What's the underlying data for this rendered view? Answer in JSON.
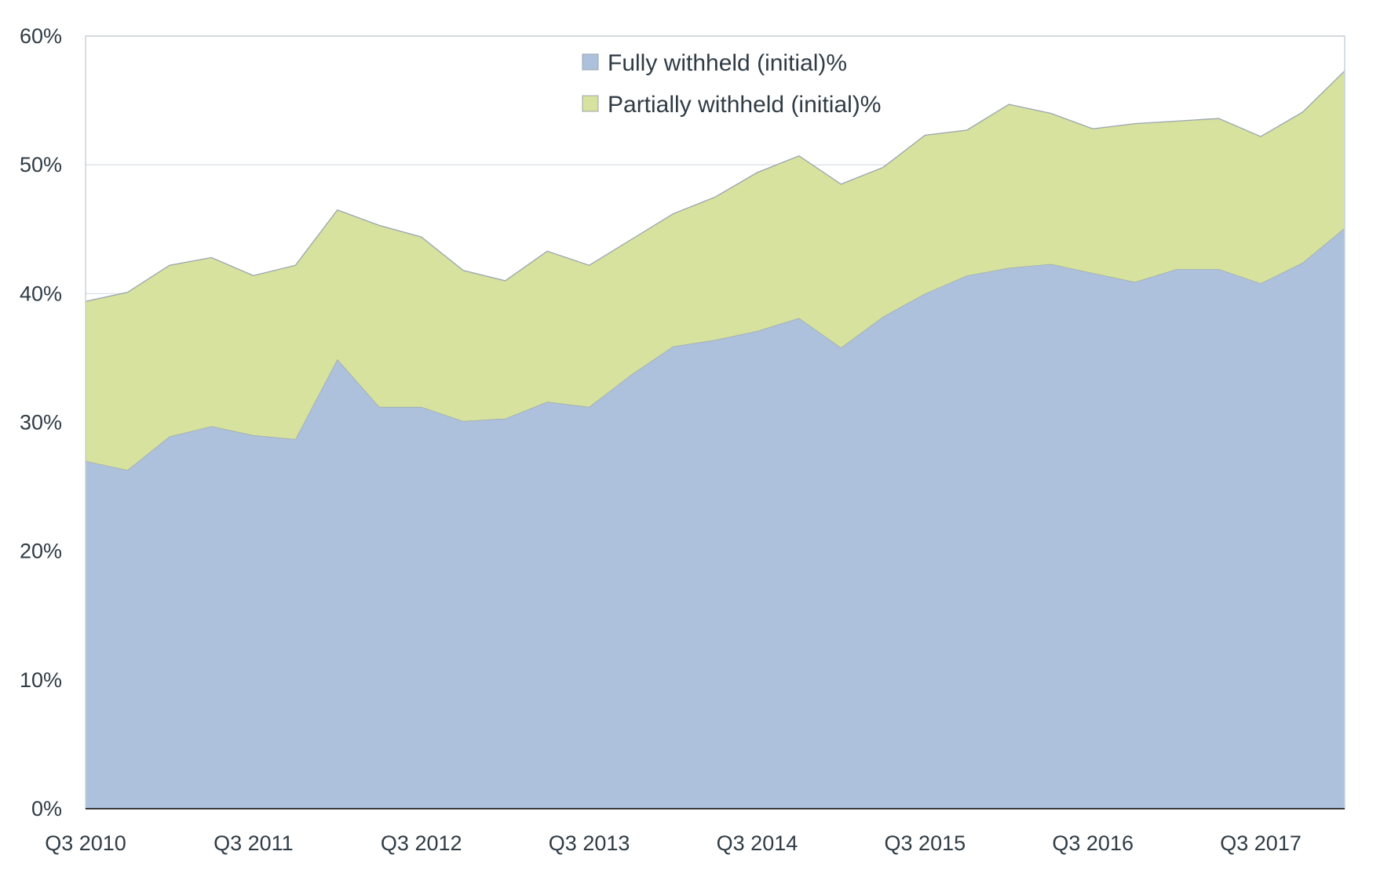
{
  "chart_data": {
    "type": "area",
    "stacked": true,
    "title": "",
    "xlabel": "",
    "ylabel": "",
    "ylim": [
      0,
      60
    ],
    "y_ticks": [
      "0%",
      "10%",
      "20%",
      "30%",
      "40%",
      "50%",
      "60%"
    ],
    "x_tick_labels": [
      "Q3 2010",
      "Q3 2011",
      "Q3 2012",
      "Q3 2013",
      "Q3 2014",
      "Q3 2015",
      "Q3 2016",
      "Q3 2017"
    ],
    "x": [
      "Q3 2010",
      "Q4 2010",
      "Q1 2011",
      "Q2 2011",
      "Q3 2011",
      "Q4 2011",
      "Q1 2012",
      "Q2 2012",
      "Q3 2012",
      "Q4 2012",
      "Q1 2013",
      "Q2 2013",
      "Q3 2013",
      "Q4 2013",
      "Q1 2014",
      "Q2 2014",
      "Q3 2014",
      "Q4 2014",
      "Q1 2015",
      "Q2 2015",
      "Q3 2015",
      "Q4 2015",
      "Q1 2016",
      "Q2 2016",
      "Q3 2016",
      "Q4 2016",
      "Q1 2017",
      "Q2 2017",
      "Q3 2017",
      "Q4 2017",
      "Q1 2018"
    ],
    "grid": "horizontal",
    "legend_position": "top-center",
    "series": [
      {
        "name": "Fully withheld (initial)%",
        "color": "#adc1dc",
        "values": [
          27.0,
          26.3,
          28.9,
          29.7,
          29.0,
          28.7,
          34.9,
          31.2,
          31.2,
          30.1,
          30.3,
          31.6,
          31.2,
          33.7,
          35.9,
          36.4,
          37.1,
          38.1,
          35.8,
          38.2,
          40.0,
          41.4,
          42.0,
          42.3,
          41.6,
          40.9,
          41.9,
          41.9,
          40.8,
          42.4,
          45.1
        ]
      },
      {
        "name": "Partially withheld (initial)%",
        "color": "#d6e29d",
        "values": [
          12.4,
          13.8,
          13.3,
          13.1,
          12.4,
          13.5,
          11.6,
          14.1,
          13.2,
          11.7,
          10.7,
          11.7,
          11.0,
          10.5,
          10.3,
          11.1,
          12.3,
          12.6,
          12.7,
          11.6,
          12.3,
          11.3,
          12.7,
          11.7,
          11.2,
          12.3,
          11.5,
          11.7,
          11.4,
          11.7,
          12.2
        ]
      }
    ],
    "axis_color": "#3a3a3a",
    "gridline_color": "#dfe5ea"
  }
}
